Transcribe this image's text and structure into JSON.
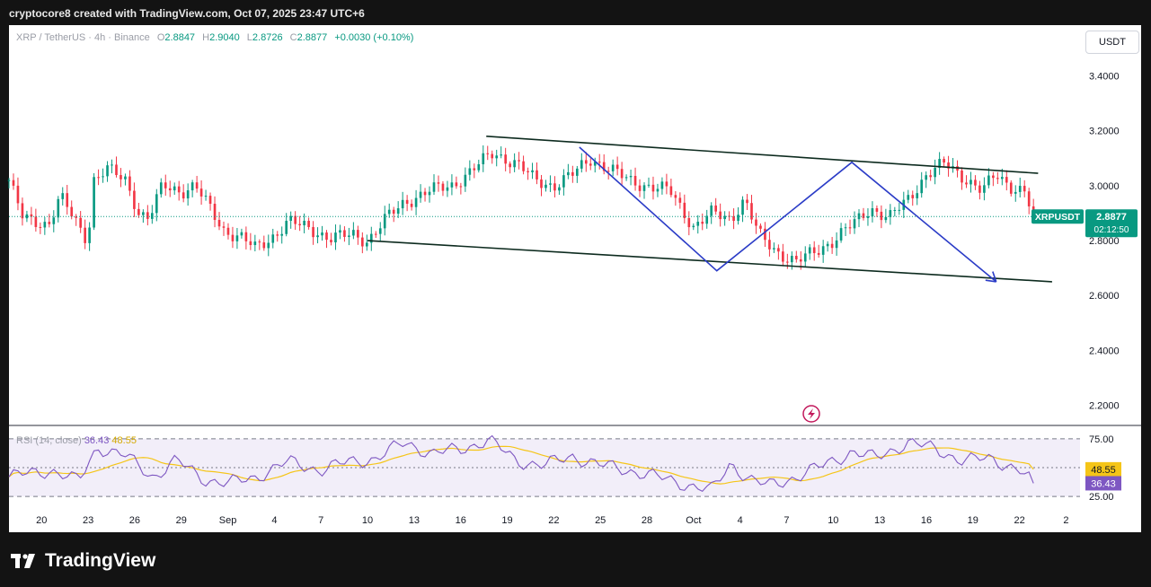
{
  "header": {
    "caption": "cryptocore8 created with TradingView.com, Oct 07, 2025 23:47 UTC+6"
  },
  "legend": {
    "symbol": "XRP / TetherUS · 4h · Binance",
    "open_label": "O",
    "open": "2.8847",
    "high_label": "H",
    "high": "2.9040",
    "low_label": "L",
    "low": "2.8726",
    "close_label": "C",
    "close": "2.8877",
    "change": "+0.0030 (+0.10%)"
  },
  "currency_button": "USDT",
  "price_badge": {
    "symbol": "XRPUSDT",
    "price": "2.8877",
    "countdown": "02:12:50"
  },
  "rsi_legend": {
    "name": "RSI (14, close)",
    "rsi": "36.43",
    "ma": "48.55"
  },
  "rsi_badges": {
    "ma": "48.55",
    "rsi": "36.43"
  },
  "brand": {
    "name": "TradingView"
  },
  "colors": {
    "up": "#089981",
    "down": "#f23645",
    "pattern": "#2b3cc7",
    "channel": "#0d2b1f",
    "rsi": "#7e57c2",
    "rsi_ma": "#f5c518"
  },
  "chart_data": {
    "type": "candlestick",
    "title": "XRP / TetherUS · 4h · Binance",
    "price_axis": {
      "ticks": [
        "3.4000",
        "3.2000",
        "3.0000",
        "2.8000",
        "2.6000",
        "2.4000",
        "2.2000"
      ],
      "range": [
        2.13,
        3.48
      ]
    },
    "time_axis": [
      "20",
      "23",
      "26",
      "29",
      "Sep",
      "4",
      "7",
      "10",
      "13",
      "16",
      "19",
      "22",
      "25",
      "28",
      "Oct",
      "4",
      "7",
      "10",
      "13",
      "16",
      "19",
      "22",
      "2"
    ],
    "time_index_range": [
      -0.7,
      22.3
    ],
    "last_price": 2.8877,
    "anchors": [
      [
        -0.7,
        3.02
      ],
      [
        -0.4,
        2.88
      ],
      [
        0.15,
        2.86
      ],
      [
        0.4,
        2.96
      ],
      [
        0.8,
        2.85
      ],
      [
        1.0,
        2.8
      ],
      [
        1.1,
        3.02
      ],
      [
        1.4,
        3.06
      ],
      [
        1.8,
        3.02
      ],
      [
        2.1,
        2.9
      ],
      [
        2.3,
        2.88
      ],
      [
        2.6,
        3.0
      ],
      [
        3.0,
        2.98
      ],
      [
        3.3,
        3.0
      ],
      [
        3.6,
        2.92
      ],
      [
        3.9,
        2.84
      ],
      [
        4.3,
        2.81
      ],
      [
        4.6,
        2.77
      ],
      [
        5.0,
        2.82
      ],
      [
        5.3,
        2.87
      ],
      [
        5.8,
        2.84
      ],
      [
        6.2,
        2.81
      ],
      [
        6.7,
        2.82
      ],
      [
        7.0,
        2.8
      ],
      [
        7.4,
        2.88
      ],
      [
        7.8,
        2.94
      ],
      [
        8.3,
        2.98
      ],
      [
        8.8,
        3.0
      ],
      [
        9.2,
        3.05
      ],
      [
        9.7,
        3.12
      ],
      [
        10.2,
        3.08
      ],
      [
        10.6,
        3.02
      ],
      [
        11.0,
        3.0
      ],
      [
        11.4,
        3.04
      ],
      [
        11.8,
        3.1
      ],
      [
        12.2,
        3.06
      ],
      [
        12.6,
        3.02
      ],
      [
        13.0,
        3.0
      ],
      [
        13.5,
        2.98
      ],
      [
        14.0,
        2.85
      ],
      [
        14.4,
        2.9
      ],
      [
        14.8,
        2.88
      ],
      [
        15.1,
        2.95
      ],
      [
        15.4,
        2.82
      ],
      [
        15.8,
        2.76
      ],
      [
        16.2,
        2.72
      ],
      [
        16.6,
        2.76
      ],
      [
        17.0,
        2.8
      ],
      [
        17.5,
        2.87
      ],
      [
        17.8,
        2.92
      ],
      [
        18.2,
        2.88
      ],
      [
        18.6,
        2.95
      ],
      [
        19.0,
        3.04
      ],
      [
        19.4,
        3.08
      ],
      [
        19.9,
        3.02
      ],
      [
        20.2,
        2.98
      ],
      [
        20.5,
        3.04
      ],
      [
        20.8,
        3.0
      ],
      [
        21.1,
        2.98
      ],
      [
        21.3,
        2.89
      ]
    ],
    "channel_upper": [
      [
        9.55,
        3.18
      ],
      [
        21.4,
        3.045
      ]
    ],
    "channel_lower": [
      [
        7.0,
        2.8
      ],
      [
        21.7,
        2.65
      ]
    ],
    "pattern_path": [
      [
        11.55,
        3.14
      ],
      [
        14.5,
        2.69
      ],
      [
        17.4,
        3.085
      ],
      [
        20.5,
        2.65
      ]
    ],
    "rsi": {
      "name": "RSI",
      "levels": [
        75,
        50,
        25
      ],
      "range": [
        15,
        85
      ],
      "current": 36.43,
      "ma_current": 48.55,
      "anchors": [
        [
          -0.7,
          42
        ],
        [
          0.2,
          48
        ],
        [
          0.8,
          38
        ],
        [
          1.2,
          68
        ],
        [
          1.8,
          60
        ],
        [
          2.4,
          42
        ],
        [
          2.9,
          56
        ],
        [
          3.5,
          40
        ],
        [
          4.0,
          36
        ],
        [
          4.6,
          42
        ],
        [
          5.3,
          55
        ],
        [
          6.0,
          48
        ],
        [
          6.6,
          55
        ],
        [
          7.2,
          58
        ],
        [
          7.8,
          72
        ],
        [
          8.4,
          62
        ],
        [
          9.0,
          66
        ],
        [
          9.6,
          74
        ],
        [
          10.2,
          56
        ],
        [
          10.8,
          52
        ],
        [
          11.4,
          60
        ],
        [
          12.0,
          52
        ],
        [
          12.6,
          48
        ],
        [
          13.2,
          42
        ],
        [
          13.8,
          36
        ],
        [
          14.4,
          30
        ],
        [
          14.8,
          54
        ],
        [
          15.2,
          40
        ],
        [
          15.6,
          34
        ],
        [
          16.2,
          42
        ],
        [
          16.8,
          52
        ],
        [
          17.4,
          64
        ],
        [
          17.9,
          58
        ],
        [
          18.6,
          72
        ],
        [
          19.2,
          66
        ],
        [
          19.8,
          56
        ],
        [
          20.4,
          58
        ],
        [
          21.0,
          48
        ],
        [
          21.3,
          36
        ]
      ]
    }
  }
}
